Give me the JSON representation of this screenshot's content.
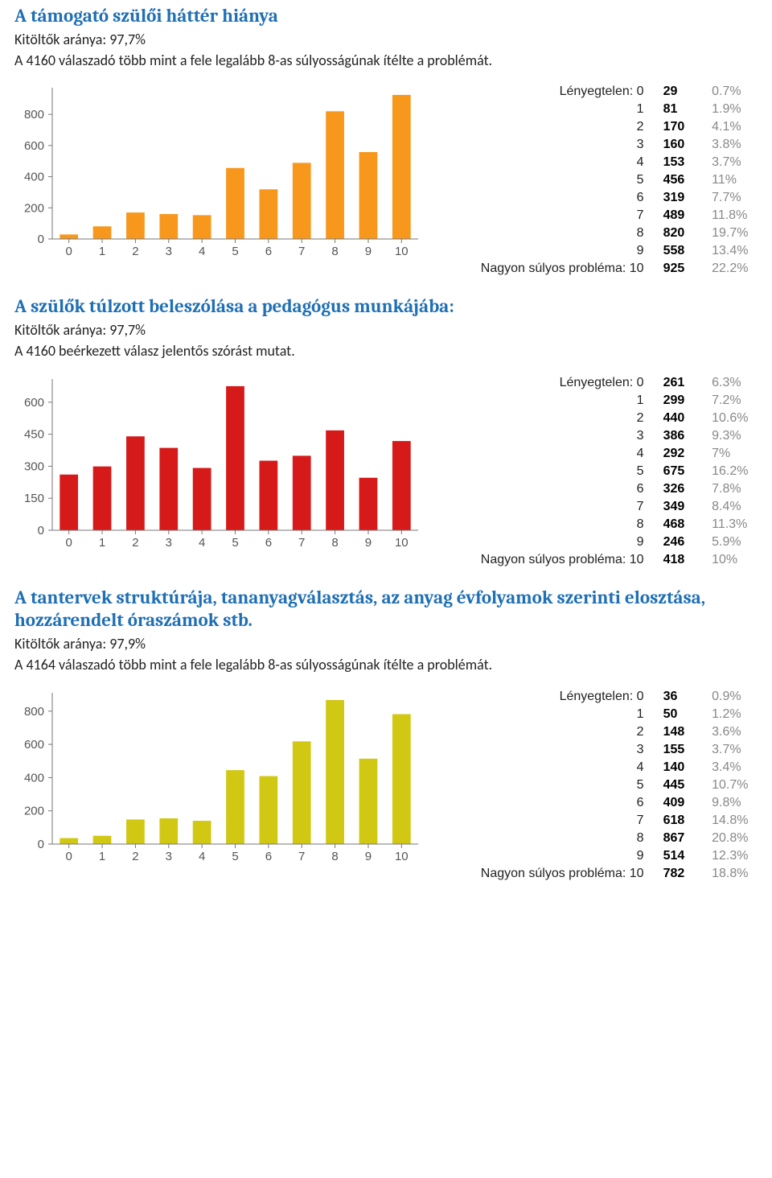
{
  "sections": [
    {
      "title": "A támogató szülői háttér hiánya",
      "subtitle1": "Kitöltők aránya: 97,7%",
      "subtitle2": " A 4160 válaszadó több mint a fele legalább 8-as súlyosságúnak ítélte a problémát.",
      "chart": {
        "type": "bar",
        "bar_color": "#f7981d",
        "axis_color": "#777777",
        "grid_color": "#ffffff",
        "bg": "#ffffff",
        "categories": [
          "0",
          "1",
          "2",
          "3",
          "4",
          "5",
          "6",
          "7",
          "8",
          "9",
          "10"
        ],
        "values": [
          29,
          81,
          170,
          160,
          153,
          456,
          319,
          489,
          820,
          558,
          925
        ],
        "ymax": 925,
        "yticks": [
          0,
          200,
          400,
          600,
          800
        ],
        "ytick_labels": [
          "0",
          "200",
          "400",
          "600",
          "800"
        ],
        "bar_width": 0.55
      },
      "table": {
        "label_first": "Lényegtelen: 0",
        "label_last": "Nagyon súlyos probléma: 10",
        "rows": [
          {
            "k": "Lényegtelen: 0",
            "c": "29",
            "p": "0.7%"
          },
          {
            "k": "1",
            "c": "81",
            "p": "1.9%"
          },
          {
            "k": "2",
            "c": "170",
            "p": "4.1%"
          },
          {
            "k": "3",
            "c": "160",
            "p": "3.8%"
          },
          {
            "k": "4",
            "c": "153",
            "p": "3.7%"
          },
          {
            "k": "5",
            "c": "456",
            "p": "11%"
          },
          {
            "k": "6",
            "c": "319",
            "p": "7.7%"
          },
          {
            "k": "7",
            "c": "489",
            "p": "11.8%"
          },
          {
            "k": "8",
            "c": "820",
            "p": "19.7%"
          },
          {
            "k": "9",
            "c": "558",
            "p": "13.4%"
          },
          {
            "k": "Nagyon súlyos probléma: 10",
            "c": "925",
            "p": "22.2%"
          }
        ]
      }
    },
    {
      "title": "A szülők túlzott beleszólása a pedagógus munkájába:",
      "subtitle1": "Kitöltők aránya: 97,7%",
      "subtitle2": "A 4160 beérkezett válasz jelentős szórást mutat.",
      "chart": {
        "type": "bar",
        "bar_color": "#d61919",
        "axis_color": "#777777",
        "grid_color": "#ffffff",
        "bg": "#ffffff",
        "categories": [
          "0",
          "1",
          "2",
          "3",
          "4",
          "5",
          "6",
          "7",
          "8",
          "9",
          "10"
        ],
        "values": [
          261,
          299,
          440,
          386,
          292,
          675,
          326,
          349,
          468,
          246,
          418
        ],
        "ymax": 675,
        "yticks": [
          0,
          150,
          300,
          450,
          600
        ],
        "ytick_labels": [
          "0",
          "150",
          "300",
          "450",
          "600"
        ],
        "bar_width": 0.55
      },
      "table": {
        "rows": [
          {
            "k": "Lényegtelen: 0",
            "c": "261",
            "p": "6.3%"
          },
          {
            "k": "1",
            "c": "299",
            "p": "7.2%"
          },
          {
            "k": "2",
            "c": "440",
            "p": "10.6%"
          },
          {
            "k": "3",
            "c": "386",
            "p": "9.3%"
          },
          {
            "k": "4",
            "c": "292",
            "p": "7%"
          },
          {
            "k": "5",
            "c": "675",
            "p": "16.2%"
          },
          {
            "k": "6",
            "c": "326",
            "p": "7.8%"
          },
          {
            "k": "7",
            "c": "349",
            "p": "8.4%"
          },
          {
            "k": "8",
            "c": "468",
            "p": "11.3%"
          },
          {
            "k": "9",
            "c": "246",
            "p": "5.9%"
          },
          {
            "k": "Nagyon súlyos probléma: 10",
            "c": "418",
            "p": "10%"
          }
        ]
      }
    },
    {
      "title": "A tantervek struktúrája, tananyagválasztás, az anyag évfolyamok szerinti elosztása, hozzárendelt óraszámok stb.",
      "subtitle1": "Kitöltők aránya: 97,9%",
      "subtitle2": " A 4164 válaszadó több mint a fele legalább 8-as súlyosságúnak ítélte a problémát.",
      "chart": {
        "type": "bar",
        "bar_color": "#d1c813",
        "axis_color": "#777777",
        "grid_color": "#ffffff",
        "bg": "#ffffff",
        "categories": [
          "0",
          "1",
          "2",
          "3",
          "4",
          "5",
          "6",
          "7",
          "8",
          "9",
          "10"
        ],
        "values": [
          36,
          50,
          148,
          155,
          140,
          445,
          409,
          618,
          867,
          514,
          782
        ],
        "ymax": 867,
        "yticks": [
          0,
          200,
          400,
          600,
          800
        ],
        "ytick_labels": [
          "0",
          "200",
          "400",
          "600",
          "800"
        ],
        "bar_width": 0.55
      },
      "table": {
        "rows": [
          {
            "k": "Lényegtelen: 0",
            "c": "36",
            "p": "0.9%"
          },
          {
            "k": "1",
            "c": "50",
            "p": "1.2%"
          },
          {
            "k": "2",
            "c": "148",
            "p": "3.6%"
          },
          {
            "k": "3",
            "c": "155",
            "p": "3.7%"
          },
          {
            "k": "4",
            "c": "140",
            "p": "3.4%"
          },
          {
            "k": "5",
            "c": "445",
            "p": "10.7%"
          },
          {
            "k": "6",
            "c": "409",
            "p": "9.8%"
          },
          {
            "k": "7",
            "c": "618",
            "p": "14.8%"
          },
          {
            "k": "8",
            "c": "867",
            "p": "20.8%"
          },
          {
            "k": "9",
            "c": "514",
            "p": "12.3%"
          },
          {
            "k": "Nagyon súlyos probléma: 10",
            "c": "782",
            "p": "18.8%"
          }
        ]
      }
    }
  ]
}
